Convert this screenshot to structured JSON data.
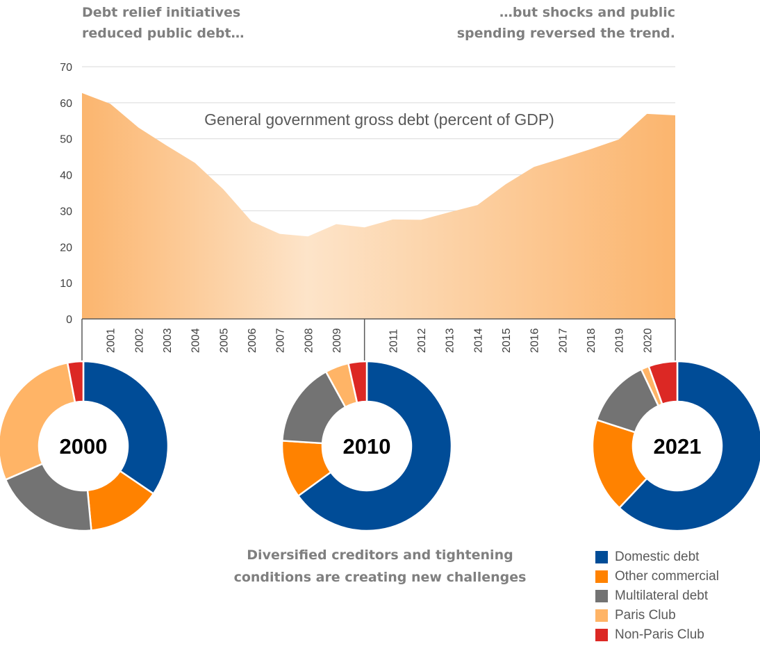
{
  "headline_left": [
    "Debt relief initiatives",
    "reduced public debt…"
  ],
  "headline_right": [
    "…but shocks and public",
    "spending reversed the trend."
  ],
  "footer_note": [
    "Diversified creditors and tightening",
    "conditions are creating new challenges"
  ],
  "colors": {
    "area_edge": "#fbb56e",
    "area_mid": "#fde4c9",
    "gridline": "#d9d9d9",
    "axis": "#595959",
    "text": "#404040",
    "heading": "#7f7f7f"
  },
  "chart_data": [
    {
      "type": "area",
      "title": "General government gross debt (percent of GDP)",
      "x": [
        "2000",
        "2001",
        "2002",
        "2003",
        "2004",
        "2005",
        "2006",
        "2007",
        "2008",
        "2009",
        "2010",
        "2011",
        "2012",
        "2013",
        "2014",
        "2015",
        "2016",
        "2017",
        "2018",
        "2019",
        "2020",
        "2021"
      ],
      "x_tick_labels": [
        "2001",
        "2002",
        "2003",
        "2004",
        "2005",
        "2006",
        "2007",
        "2008",
        "2009",
        "2011",
        "2012",
        "2013",
        "2014",
        "2015",
        "2016",
        "2017",
        "2018",
        "2019",
        "2020"
      ],
      "values": [
        62.7,
        59.7,
        53.1,
        48.1,
        43.3,
        36.0,
        27.1,
        23.6,
        22.9,
        26.3,
        25.4,
        27.6,
        27.5,
        29.6,
        31.6,
        37.4,
        42.2,
        44.6,
        47.1,
        49.8,
        56.9,
        56.5
      ],
      "y_ticks": [
        0,
        10,
        20,
        30,
        40,
        50,
        60,
        70
      ],
      "ylim": [
        0,
        70
      ],
      "grid": true
    },
    {
      "type": "pie",
      "center_label": "2000",
      "categories": [
        "Domestic debt",
        "Other commercial",
        "Multilateral debt",
        "Paris Club",
        "Non-Paris Club"
      ],
      "values": [
        34.5,
        14.0,
        20.0,
        28.5,
        3.0
      ]
    },
    {
      "type": "pie",
      "center_label": "2010",
      "categories": [
        "Domestic debt",
        "Other commercial",
        "Multilateral debt",
        "Paris Club",
        "Non-Paris Club"
      ],
      "values": [
        65.0,
        11.0,
        16.0,
        4.5,
        3.5
      ]
    },
    {
      "type": "pie",
      "center_label": "2021",
      "categories": [
        "Domestic debt",
        "Other commercial",
        "Multilateral debt",
        "Paris Club",
        "Non-Paris Club"
      ],
      "values": [
        62.0,
        18.0,
        13.0,
        1.5,
        5.5
      ]
    }
  ],
  "legend": [
    {
      "label": "Domestic debt",
      "color": "#004c97"
    },
    {
      "label": "Other commercial",
      "color": "#ff8200"
    },
    {
      "label": "Multilateral debt",
      "color": "#737373"
    },
    {
      "label": "Paris Club",
      "color": "#ffb466"
    },
    {
      "label": "Non-Paris Club",
      "color": "#dc2824"
    }
  ]
}
